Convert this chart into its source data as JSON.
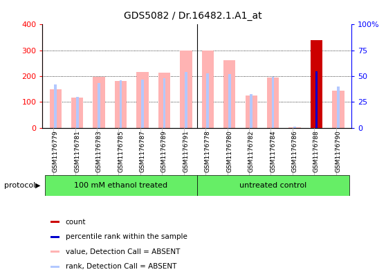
{
  "title": "GDS5082 / Dr.16482.1.A1_at",
  "samples": [
    "GSM1176779",
    "GSM1176781",
    "GSM1176783",
    "GSM1176785",
    "GSM1176787",
    "GSM1176789",
    "GSM1176791",
    "GSM1176778",
    "GSM1176780",
    "GSM1176782",
    "GSM1176784",
    "GSM1176786",
    "GSM1176788",
    "GSM1176790"
  ],
  "value_absent": [
    148,
    117,
    197,
    182,
    216,
    213,
    300,
    300,
    262,
    126,
    196,
    3,
    340,
    143
  ],
  "rank_absent": [
    168,
    120,
    174,
    185,
    188,
    192,
    215,
    210,
    208,
    131,
    198,
    5,
    222,
    160
  ],
  "count_bar": [
    0,
    0,
    0,
    0,
    0,
    0,
    0,
    0,
    0,
    0,
    0,
    0,
    340,
    0
  ],
  "percentile_rank": [
    0,
    0,
    0,
    0,
    0,
    0,
    0,
    0,
    0,
    0,
    0,
    0,
    55,
    0
  ],
  "groups": [
    {
      "label": "100 mM ethanol treated",
      "start": 0,
      "end": 6
    },
    {
      "label": "untreated control",
      "start": 7,
      "end": 13
    }
  ],
  "group_color": "#66ee66",
  "group_separator_idx": 6,
  "left_ylim": [
    0,
    400
  ],
  "left_yticks": [
    0,
    100,
    200,
    300,
    400
  ],
  "right_ylim": [
    0,
    100
  ],
  "right_yticks": [
    0,
    25,
    50,
    75,
    100
  ],
  "color_value_absent": "#ffb3b3",
  "color_rank_absent": "#b3c8ff",
  "color_count": "#cc0000",
  "color_percentile": "#0000cc",
  "legend_items": [
    {
      "label": "count",
      "color": "#cc0000"
    },
    {
      "label": "percentile rank within the sample",
      "color": "#0000cc"
    },
    {
      "label": "value, Detection Call = ABSENT",
      "color": "#ffb3b3"
    },
    {
      "label": "rank, Detection Call = ABSENT",
      "color": "#b3c8ff"
    }
  ],
  "protocol_label": "protocol",
  "xtick_bg": "#cccccc",
  "plot_bg": "#ffffff"
}
